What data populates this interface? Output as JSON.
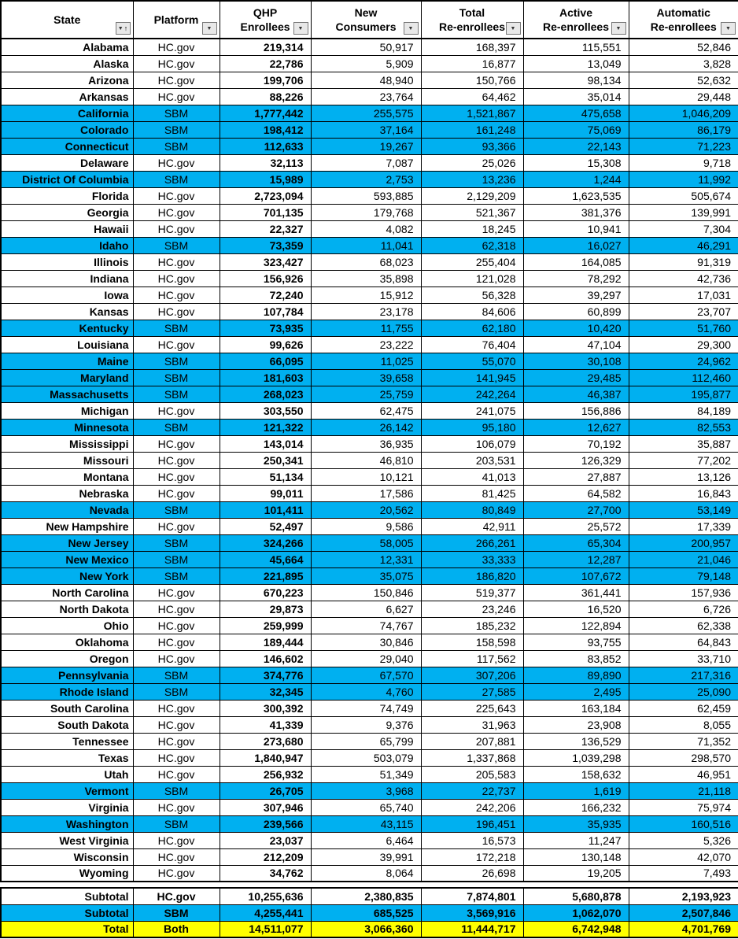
{
  "colors": {
    "sbm_row_fill": "#00B0F0",
    "total_row_fill": "#FFFF00",
    "grid": "#000000",
    "filter_button_fill": "#E8E8E8"
  },
  "table": {
    "columns": [
      {
        "id": "state",
        "label": "State",
        "icon": "sort-asc-filter"
      },
      {
        "id": "platform",
        "label": "Platform",
        "icon": "filter"
      },
      {
        "id": "qhp",
        "label": "QHP\nEnrollees",
        "icon": "filter"
      },
      {
        "id": "new_consumers",
        "label": "New\nConsumers",
        "icon": "filter"
      },
      {
        "id": "total_reenrollees",
        "label": "Total\nRe-enrollees",
        "icon": "filter"
      },
      {
        "id": "active_reenrollees",
        "label": "Active\nRe-enrollees",
        "icon": "filter"
      },
      {
        "id": "automatic_reenrollees",
        "label": "Automatic\nRe-enrollees",
        "icon": "filter"
      }
    ],
    "rows": [
      {
        "state": "Alabama",
        "platform": "HC.gov",
        "qhp": "219,314",
        "new_consumers": "50,917",
        "total_reenrollees": "168,397",
        "active_reenrollees": "115,551",
        "automatic_reenrollees": "52,846"
      },
      {
        "state": "Alaska",
        "platform": "HC.gov",
        "qhp": "22,786",
        "new_consumers": "5,909",
        "total_reenrollees": "16,877",
        "active_reenrollees": "13,049",
        "automatic_reenrollees": "3,828"
      },
      {
        "state": "Arizona",
        "platform": "HC.gov",
        "qhp": "199,706",
        "new_consumers": "48,940",
        "total_reenrollees": "150,766",
        "active_reenrollees": "98,134",
        "automatic_reenrollees": "52,632"
      },
      {
        "state": "Arkansas",
        "platform": "HC.gov",
        "qhp": "88,226",
        "new_consumers": "23,764",
        "total_reenrollees": "64,462",
        "active_reenrollees": "35,014",
        "automatic_reenrollees": "29,448"
      },
      {
        "state": "California",
        "platform": "SBM",
        "qhp": "1,777,442",
        "new_consumers": "255,575",
        "total_reenrollees": "1,521,867",
        "active_reenrollees": "475,658",
        "automatic_reenrollees": "1,046,209"
      },
      {
        "state": "Colorado",
        "platform": "SBM",
        "qhp": "198,412",
        "new_consumers": "37,164",
        "total_reenrollees": "161,248",
        "active_reenrollees": "75,069",
        "automatic_reenrollees": "86,179"
      },
      {
        "state": "Connecticut",
        "platform": "SBM",
        "qhp": "112,633",
        "new_consumers": "19,267",
        "total_reenrollees": "93,366",
        "active_reenrollees": "22,143",
        "automatic_reenrollees": "71,223"
      },
      {
        "state": "Delaware",
        "platform": "HC.gov",
        "qhp": "32,113",
        "new_consumers": "7,087",
        "total_reenrollees": "25,026",
        "active_reenrollees": "15,308",
        "automatic_reenrollees": "9,718"
      },
      {
        "state": "District Of Columbia",
        "platform": "SBM",
        "qhp": "15,989",
        "new_consumers": "2,753",
        "total_reenrollees": "13,236",
        "active_reenrollees": "1,244",
        "automatic_reenrollees": "11,992"
      },
      {
        "state": "Florida",
        "platform": "HC.gov",
        "qhp": "2,723,094",
        "new_consumers": "593,885",
        "total_reenrollees": "2,129,209",
        "active_reenrollees": "1,623,535",
        "automatic_reenrollees": "505,674"
      },
      {
        "state": "Georgia",
        "platform": "HC.gov",
        "qhp": "701,135",
        "new_consumers": "179,768",
        "total_reenrollees": "521,367",
        "active_reenrollees": "381,376",
        "automatic_reenrollees": "139,991"
      },
      {
        "state": "Hawaii",
        "platform": "HC.gov",
        "qhp": "22,327",
        "new_consumers": "4,082",
        "total_reenrollees": "18,245",
        "active_reenrollees": "10,941",
        "automatic_reenrollees": "7,304"
      },
      {
        "state": "Idaho",
        "platform": "SBM",
        "qhp": "73,359",
        "new_consumers": "11,041",
        "total_reenrollees": "62,318",
        "active_reenrollees": "16,027",
        "automatic_reenrollees": "46,291"
      },
      {
        "state": "Illinois",
        "platform": "HC.gov",
        "qhp": "323,427",
        "new_consumers": "68,023",
        "total_reenrollees": "255,404",
        "active_reenrollees": "164,085",
        "automatic_reenrollees": "91,319"
      },
      {
        "state": "Indiana",
        "platform": "HC.gov",
        "qhp": "156,926",
        "new_consumers": "35,898",
        "total_reenrollees": "121,028",
        "active_reenrollees": "78,292",
        "automatic_reenrollees": "42,736"
      },
      {
        "state": "Iowa",
        "platform": "HC.gov",
        "qhp": "72,240",
        "new_consumers": "15,912",
        "total_reenrollees": "56,328",
        "active_reenrollees": "39,297",
        "automatic_reenrollees": "17,031"
      },
      {
        "state": "Kansas",
        "platform": "HC.gov",
        "qhp": "107,784",
        "new_consumers": "23,178",
        "total_reenrollees": "84,606",
        "active_reenrollees": "60,899",
        "automatic_reenrollees": "23,707"
      },
      {
        "state": "Kentucky",
        "platform": "SBM",
        "qhp": "73,935",
        "new_consumers": "11,755",
        "total_reenrollees": "62,180",
        "active_reenrollees": "10,420",
        "automatic_reenrollees": "51,760"
      },
      {
        "state": "Louisiana",
        "platform": "HC.gov",
        "qhp": "99,626",
        "new_consumers": "23,222",
        "total_reenrollees": "76,404",
        "active_reenrollees": "47,104",
        "automatic_reenrollees": "29,300"
      },
      {
        "state": "Maine",
        "platform": "SBM",
        "qhp": "66,095",
        "new_consumers": "11,025",
        "total_reenrollees": "55,070",
        "active_reenrollees": "30,108",
        "automatic_reenrollees": "24,962"
      },
      {
        "state": "Maryland",
        "platform": "SBM",
        "qhp": "181,603",
        "new_consumers": "39,658",
        "total_reenrollees": "141,945",
        "active_reenrollees": "29,485",
        "automatic_reenrollees": "112,460"
      },
      {
        "state": "Massachusetts",
        "platform": "SBM",
        "qhp": "268,023",
        "new_consumers": "25,759",
        "total_reenrollees": "242,264",
        "active_reenrollees": "46,387",
        "automatic_reenrollees": "195,877"
      },
      {
        "state": "Michigan",
        "platform": "HC.gov",
        "qhp": "303,550",
        "new_consumers": "62,475",
        "total_reenrollees": "241,075",
        "active_reenrollees": "156,886",
        "automatic_reenrollees": "84,189"
      },
      {
        "state": "Minnesota",
        "platform": "SBM",
        "qhp": "121,322",
        "new_consumers": "26,142",
        "total_reenrollees": "95,180",
        "active_reenrollees": "12,627",
        "automatic_reenrollees": "82,553"
      },
      {
        "state": "Mississippi",
        "platform": "HC.gov",
        "qhp": "143,014",
        "new_consumers": "36,935",
        "total_reenrollees": "106,079",
        "active_reenrollees": "70,192",
        "automatic_reenrollees": "35,887"
      },
      {
        "state": "Missouri",
        "platform": "HC.gov",
        "qhp": "250,341",
        "new_consumers": "46,810",
        "total_reenrollees": "203,531",
        "active_reenrollees": "126,329",
        "automatic_reenrollees": "77,202"
      },
      {
        "state": "Montana",
        "platform": "HC.gov",
        "qhp": "51,134",
        "new_consumers": "10,121",
        "total_reenrollees": "41,013",
        "active_reenrollees": "27,887",
        "automatic_reenrollees": "13,126"
      },
      {
        "state": "Nebraska",
        "platform": "HC.gov",
        "qhp": "99,011",
        "new_consumers": "17,586",
        "total_reenrollees": "81,425",
        "active_reenrollees": "64,582",
        "automatic_reenrollees": "16,843"
      },
      {
        "state": "Nevada",
        "platform": "SBM",
        "qhp": "101,411",
        "new_consumers": "20,562",
        "total_reenrollees": "80,849",
        "active_reenrollees": "27,700",
        "automatic_reenrollees": "53,149"
      },
      {
        "state": "New Hampshire",
        "platform": "HC.gov",
        "qhp": "52,497",
        "new_consumers": "9,586",
        "total_reenrollees": "42,911",
        "active_reenrollees": "25,572",
        "automatic_reenrollees": "17,339"
      },
      {
        "state": "New Jersey",
        "platform": "SBM",
        "qhp": "324,266",
        "new_consumers": "58,005",
        "total_reenrollees": "266,261",
        "active_reenrollees": "65,304",
        "automatic_reenrollees": "200,957"
      },
      {
        "state": "New Mexico",
        "platform": "SBM",
        "qhp": "45,664",
        "new_consumers": "12,331",
        "total_reenrollees": "33,333",
        "active_reenrollees": "12,287",
        "automatic_reenrollees": "21,046"
      },
      {
        "state": "New York",
        "platform": "SBM",
        "qhp": "221,895",
        "new_consumers": "35,075",
        "total_reenrollees": "186,820",
        "active_reenrollees": "107,672",
        "automatic_reenrollees": "79,148"
      },
      {
        "state": "North Carolina",
        "platform": "HC.gov",
        "qhp": "670,223",
        "new_consumers": "150,846",
        "total_reenrollees": "519,377",
        "active_reenrollees": "361,441",
        "automatic_reenrollees": "157,936"
      },
      {
        "state": "North Dakota",
        "platform": "HC.gov",
        "qhp": "29,873",
        "new_consumers": "6,627",
        "total_reenrollees": "23,246",
        "active_reenrollees": "16,520",
        "automatic_reenrollees": "6,726"
      },
      {
        "state": "Ohio",
        "platform": "HC.gov",
        "qhp": "259,999",
        "new_consumers": "74,767",
        "total_reenrollees": "185,232",
        "active_reenrollees": "122,894",
        "automatic_reenrollees": "62,338"
      },
      {
        "state": "Oklahoma",
        "platform": "HC.gov",
        "qhp": "189,444",
        "new_consumers": "30,846",
        "total_reenrollees": "158,598",
        "active_reenrollees": "93,755",
        "automatic_reenrollees": "64,843"
      },
      {
        "state": "Oregon",
        "platform": "HC.gov",
        "qhp": "146,602",
        "new_consumers": "29,040",
        "total_reenrollees": "117,562",
        "active_reenrollees": "83,852",
        "automatic_reenrollees": "33,710"
      },
      {
        "state": "Pennsylvania",
        "platform": "SBM",
        "qhp": "374,776",
        "new_consumers": "67,570",
        "total_reenrollees": "307,206",
        "active_reenrollees": "89,890",
        "automatic_reenrollees": "217,316"
      },
      {
        "state": "Rhode Island",
        "platform": "SBM",
        "qhp": "32,345",
        "new_consumers": "4,760",
        "total_reenrollees": "27,585",
        "active_reenrollees": "2,495",
        "automatic_reenrollees": "25,090"
      },
      {
        "state": "South Carolina",
        "platform": "HC.gov",
        "qhp": "300,392",
        "new_consumers": "74,749",
        "total_reenrollees": "225,643",
        "active_reenrollees": "163,184",
        "automatic_reenrollees": "62,459"
      },
      {
        "state": "South Dakota",
        "platform": "HC.gov",
        "qhp": "41,339",
        "new_consumers": "9,376",
        "total_reenrollees": "31,963",
        "active_reenrollees": "23,908",
        "automatic_reenrollees": "8,055"
      },
      {
        "state": "Tennessee",
        "platform": "HC.gov",
        "qhp": "273,680",
        "new_consumers": "65,799",
        "total_reenrollees": "207,881",
        "active_reenrollees": "136,529",
        "automatic_reenrollees": "71,352"
      },
      {
        "state": "Texas",
        "platform": "HC.gov",
        "qhp": "1,840,947",
        "new_consumers": "503,079",
        "total_reenrollees": "1,337,868",
        "active_reenrollees": "1,039,298",
        "automatic_reenrollees": "298,570"
      },
      {
        "state": "Utah",
        "platform": "HC.gov",
        "qhp": "256,932",
        "new_consumers": "51,349",
        "total_reenrollees": "205,583",
        "active_reenrollees": "158,632",
        "automatic_reenrollees": "46,951"
      },
      {
        "state": "Vermont",
        "platform": "SBM",
        "qhp": "26,705",
        "new_consumers": "3,968",
        "total_reenrollees": "22,737",
        "active_reenrollees": "1,619",
        "automatic_reenrollees": "21,118"
      },
      {
        "state": "Virginia",
        "platform": "HC.gov",
        "qhp": "307,946",
        "new_consumers": "65,740",
        "total_reenrollees": "242,206",
        "active_reenrollees": "166,232",
        "automatic_reenrollees": "75,974"
      },
      {
        "state": "Washington",
        "platform": "SBM",
        "qhp": "239,566",
        "new_consumers": "43,115",
        "total_reenrollees": "196,451",
        "active_reenrollees": "35,935",
        "automatic_reenrollees": "160,516"
      },
      {
        "state": "West Virginia",
        "platform": "HC.gov",
        "qhp": "23,037",
        "new_consumers": "6,464",
        "total_reenrollees": "16,573",
        "active_reenrollees": "11,247",
        "automatic_reenrollees": "5,326"
      },
      {
        "state": "Wisconsin",
        "platform": "HC.gov",
        "qhp": "212,209",
        "new_consumers": "39,991",
        "total_reenrollees": "172,218",
        "active_reenrollees": "130,148",
        "automatic_reenrollees": "42,070"
      },
      {
        "state": "Wyoming",
        "platform": "HC.gov",
        "qhp": "34,762",
        "new_consumers": "8,064",
        "total_reenrollees": "26,698",
        "active_reenrollees": "19,205",
        "automatic_reenrollees": "7,493"
      }
    ],
    "totals": [
      {
        "style": "hcgov-total",
        "state": "Subtotal",
        "platform": "HC.gov",
        "qhp": "10,255,636",
        "new_consumers": "2,380,835",
        "total_reenrollees": "7,874,801",
        "active_reenrollees": "5,680,878",
        "automatic_reenrollees": "2,193,923"
      },
      {
        "style": "sbm-total",
        "state": "Subtotal",
        "platform": "SBM",
        "qhp": "4,255,441",
        "new_consumers": "685,525",
        "total_reenrollees": "3,569,916",
        "active_reenrollees": "1,062,070",
        "automatic_reenrollees": "2,507,846"
      },
      {
        "style": "grand-total",
        "state": "Total",
        "platform": "Both",
        "qhp": "14,511,077",
        "new_consumers": "3,066,360",
        "total_reenrollees": "11,444,717",
        "active_reenrollees": "6,742,948",
        "automatic_reenrollees": "4,701,769"
      }
    ]
  }
}
